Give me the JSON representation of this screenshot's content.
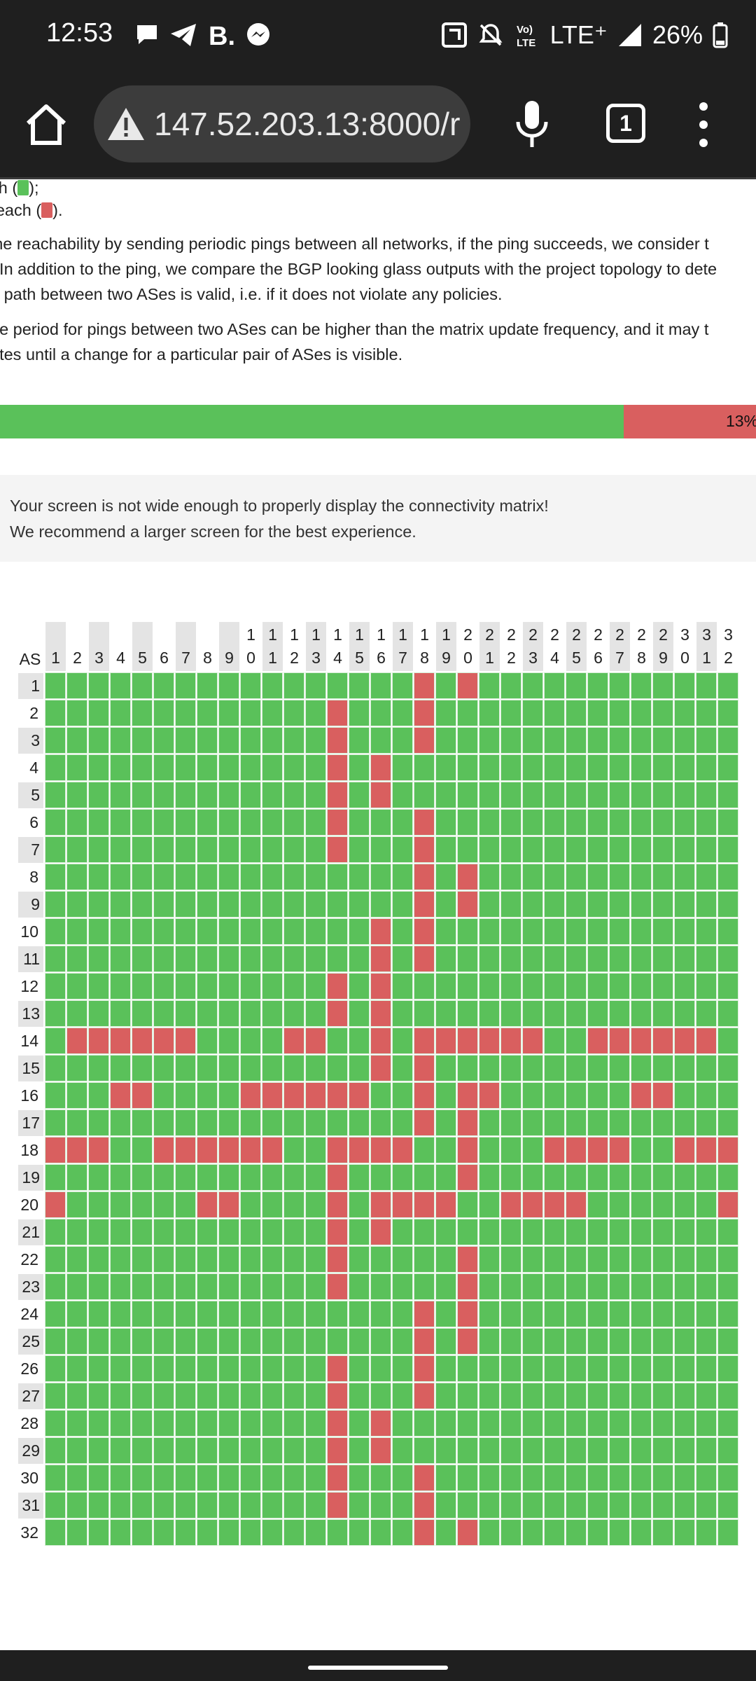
{
  "status_bar": {
    "time": "12:53",
    "network": "LTE⁺",
    "battery": "26%",
    "icons": [
      "chat-bubble-icon",
      "telegram-icon",
      "booking-b-icon",
      "messenger-icon",
      "nfc-icon",
      "mute-bell-icon",
      "volte-icon",
      "signal-icon",
      "battery-icon"
    ]
  },
  "browser": {
    "url": "147.52.203.13:8000/r",
    "tab_count": "1",
    "icons": [
      "home-icon",
      "warning-triangle-icon",
      "microphone-icon",
      "tabs-icon",
      "more-vert-icon"
    ]
  },
  "legend": {
    "reach_prefix": "ch (",
    "reach_suffix": ");",
    "noreach_prefix": "reach (",
    "noreach_suffix": ")."
  },
  "description": {
    "line1": "ine reachability by sending periodic pings between all networks, if the ping succeeds, we consider t",
    "line2": ". In addition to the ping, we compare the BGP looking glass outputs with the project topology to dete",
    "line3": "e path between two ASes is valid, i.e. if it does not violate any policies.",
    "line4": "he period for pings between two ASes can be higher than the matrix update frequency, and it may t",
    "line5": "ates until a change for a particular pair of ASes is visible."
  },
  "progress": {
    "fraction": 0.87,
    "label": "13%"
  },
  "notice": {
    "line1": "Your screen is not wide enough to properly display the connectivity matrix!",
    "line2": "We recommend a larger screen for the best experience."
  },
  "colors": {
    "reachable": "#5ac15a",
    "unreachable": "#d95f5f"
  },
  "matrix": {
    "corner_label": "AS",
    "columns": [
      "1",
      "2",
      "3",
      "4",
      "5",
      "6",
      "7",
      "8",
      "9",
      "10",
      "11",
      "12",
      "13",
      "14",
      "15",
      "16",
      "17",
      "18",
      "19",
      "20",
      "21",
      "22",
      "23",
      "24",
      "25",
      "26",
      "27",
      "28",
      "29",
      "30",
      "31",
      "32"
    ],
    "rows": [
      "1",
      "2",
      "3",
      "4",
      "5",
      "6",
      "7",
      "8",
      "9",
      "10",
      "11",
      "12",
      "13",
      "14",
      "15",
      "16",
      "17",
      "18",
      "19",
      "20",
      "21",
      "22",
      "23",
      "24",
      "25",
      "26",
      "27",
      "28",
      "29",
      "30",
      "31",
      "32"
    ],
    "unreachable": {
      "1": [
        18,
        20
      ],
      "2": [
        14,
        18
      ],
      "3": [
        14,
        18
      ],
      "4": [
        14,
        16
      ],
      "5": [
        14,
        16
      ],
      "6": [
        14,
        18
      ],
      "7": [
        14,
        18
      ],
      "8": [
        18,
        20
      ],
      "9": [
        18,
        20
      ],
      "10": [
        16,
        18
      ],
      "11": [
        16,
        18
      ],
      "12": [
        14,
        16
      ],
      "13": [
        14,
        16
      ],
      "14": [
        2,
        3,
        4,
        5,
        6,
        7,
        12,
        13,
        16,
        18,
        19,
        20,
        21,
        22,
        23,
        26,
        27,
        28,
        29,
        30,
        31
      ],
      "15": [
        16,
        18
      ],
      "16": [
        4,
        5,
        10,
        11,
        12,
        13,
        14,
        15,
        18,
        20,
        21,
        28,
        29
      ],
      "17": [
        18,
        20
      ],
      "18": [
        1,
        2,
        3,
        6,
        7,
        8,
        9,
        10,
        11,
        14,
        15,
        16,
        17,
        20,
        24,
        25,
        26,
        27,
        30,
        31,
        32
      ],
      "19": [
        14,
        20
      ],
      "20": [
        1,
        8,
        9,
        14,
        16,
        17,
        18,
        19,
        22,
        23,
        24,
        25,
        32
      ],
      "21": [
        14,
        16
      ],
      "22": [
        14,
        20
      ],
      "23": [
        14,
        20
      ],
      "24": [
        18,
        20
      ],
      "25": [
        18,
        20
      ],
      "26": [
        14,
        18
      ],
      "27": [
        14,
        18
      ],
      "28": [
        14,
        16
      ],
      "29": [
        14,
        16
      ],
      "30": [
        14,
        18
      ],
      "31": [
        14,
        18
      ],
      "32": [
        18,
        20
      ]
    }
  }
}
